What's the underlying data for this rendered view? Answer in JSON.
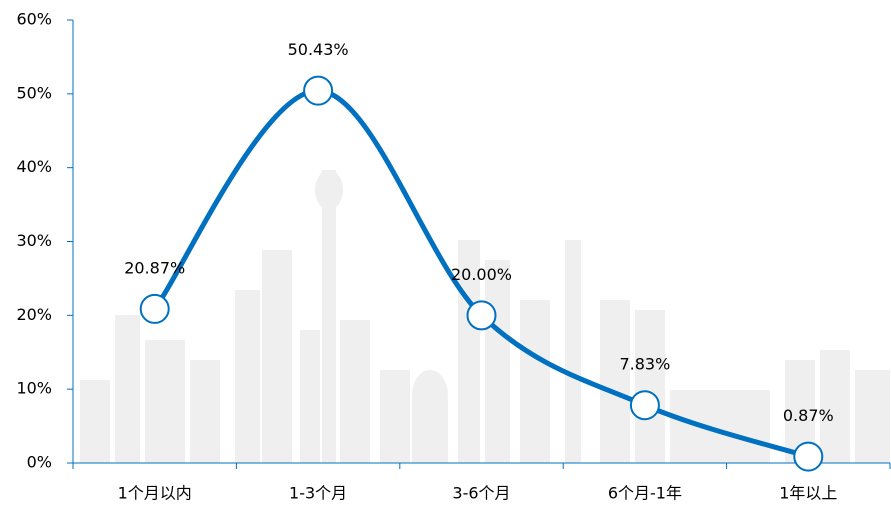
{
  "chart_data": {
    "type": "line",
    "categories": [
      "1个月以内",
      "1-3个月",
      "3-6个月",
      "6个月-1年",
      "1年以上"
    ],
    "values": [
      20.87,
      50.43,
      20.0,
      7.83,
      0.87
    ],
    "value_labels": [
      "20.87%",
      "50.43%",
      "20.00%",
      "7.83%",
      "0.87%"
    ],
    "color": "#0070c0",
    "ylim": [
      0,
      60
    ],
    "yticks": [
      {
        "value": 0,
        "label": "0%"
      },
      {
        "value": 10,
        "label": "10%"
      },
      {
        "value": 20,
        "label": "20%"
      },
      {
        "value": 30,
        "label": "30%"
      },
      {
        "value": 40,
        "label": "40%"
      },
      {
        "value": 50,
        "label": "50%"
      },
      {
        "value": 60,
        "label": "60%"
      }
    ],
    "smooth": true
  }
}
